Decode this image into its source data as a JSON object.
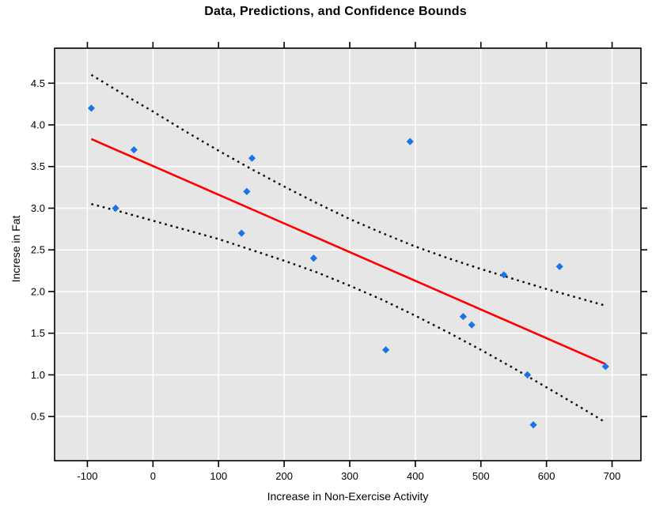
{
  "chart_data": {
    "type": "scatter",
    "title": "Data, Predictions, and Confidence Bounds",
    "xlabel": "Increase in Non-Exercise Activity",
    "ylabel": "Increse in Fat",
    "xlim": [
      -150,
      744
    ],
    "ylim": [
      -0.03,
      4.92
    ],
    "grid": true,
    "legend": "none",
    "x_ticks": [
      -100,
      0,
      100,
      200,
      300,
      400,
      500,
      600,
      700
    ],
    "x_tick_labels": [
      "-100",
      "0",
      "100",
      "200",
      "300",
      "400",
      "500",
      "600",
      "700"
    ],
    "y_ticks": [
      0.5,
      1.0,
      1.5,
      2.0,
      2.5,
      3.0,
      3.5,
      4.0,
      4.5
    ],
    "y_tick_labels": [
      "0.5",
      "1.0",
      "1.5",
      "2.0",
      "2.5",
      "3.0",
      "3.5",
      "4.0",
      "4.5"
    ],
    "points": [
      [
        -94,
        4.2
      ],
      [
        -57,
        3.0
      ],
      [
        -29,
        3.7
      ],
      [
        135,
        2.7
      ],
      [
        143,
        3.2
      ],
      [
        151,
        3.6
      ],
      [
        245,
        2.4
      ],
      [
        355,
        1.3
      ],
      [
        392,
        3.8
      ],
      [
        473,
        1.7
      ],
      [
        486,
        1.6
      ],
      [
        535,
        2.2
      ],
      [
        571,
        1.0
      ],
      [
        580,
        0.4
      ],
      [
        620,
        2.3
      ],
      [
        690,
        1.1
      ]
    ],
    "regression_line": {
      "x1": -94,
      "y1": 3.83,
      "x2": 690,
      "y2": 1.13
    },
    "confidence_bands": {
      "x": [
        -94,
        -50,
        0,
        50,
        100,
        150,
        200,
        250,
        300,
        350,
        400,
        450,
        500,
        550,
        600,
        650,
        690
      ],
      "upper": [
        4.6,
        4.39,
        4.16,
        3.92,
        3.69,
        3.47,
        3.26,
        3.06,
        2.87,
        2.7,
        2.54,
        2.4,
        2.27,
        2.15,
        2.03,
        1.92,
        1.83
      ],
      "lower": [
        3.05,
        2.96,
        2.85,
        2.74,
        2.63,
        2.5,
        2.37,
        2.23,
        2.07,
        1.9,
        1.71,
        1.51,
        1.3,
        1.08,
        0.85,
        0.62,
        0.43
      ]
    },
    "colors": {
      "point": "#1B74E4",
      "regression": "#FF0000",
      "band": "#000000",
      "plot_bg": "#E6E6E6",
      "gridline": "#FFFFFF",
      "frame": "#000000",
      "text": "#000000"
    }
  }
}
